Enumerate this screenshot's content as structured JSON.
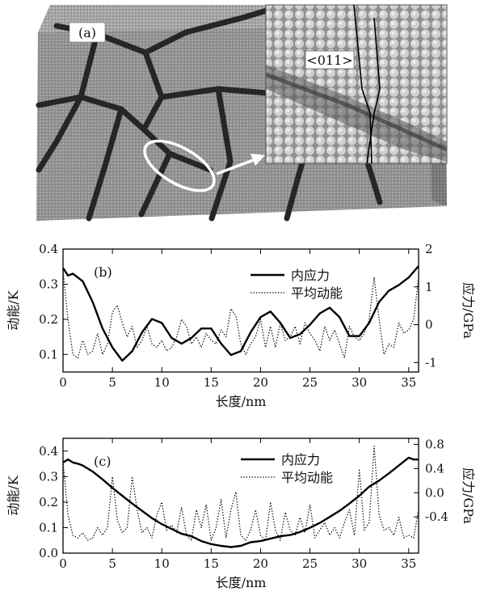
{
  "panel_a": {
    "label": "(a)",
    "inset_label": "<011>"
  },
  "chart_data": [
    {
      "type": "line",
      "panel_label": "(b)",
      "xlabel": "长度/nm",
      "ylabel_left": "动能/K",
      "ylabel_right": "应力/GPa",
      "xlim": [
        0,
        36
      ],
      "ylim_left": [
        0.05,
        0.4
      ],
      "ylim_right": [
        -1.25,
        2
      ],
      "xticks": [
        0,
        5,
        10,
        15,
        20,
        25,
        30,
        35
      ],
      "yticks_left": [
        "0.1",
        "0.2",
        "0.3",
        "0.4"
      ],
      "yticks_right": [
        "-1",
        "0",
        "1",
        "2"
      ],
      "legend_position": "top-right",
      "series": [
        {
          "name": "内应力",
          "axis": "right",
          "style": "solid",
          "x": [
            0,
            0.5,
            1,
            2,
            3,
            4,
            5,
            6,
            7,
            8,
            9,
            10,
            11,
            12,
            13,
            14,
            15,
            16,
            17,
            18,
            19,
            20,
            21,
            22,
            23,
            24,
            25,
            26,
            27,
            28,
            29,
            30,
            31,
            32,
            33,
            34,
            35,
            36
          ],
          "y": [
            1.5,
            1.3,
            1.35,
            1.15,
            0.6,
            -0.1,
            -0.6,
            -0.95,
            -0.7,
            -0.2,
            0.15,
            0.05,
            -0.35,
            -0.5,
            -0.35,
            -0.1,
            -0.1,
            -0.5,
            -0.8,
            -0.7,
            -0.2,
            0.2,
            0.35,
            0.05,
            -0.35,
            -0.25,
            0.0,
            0.3,
            0.45,
            0.2,
            -0.3,
            -0.3,
            0.05,
            0.6,
            0.9,
            1.05,
            1.25,
            1.55
          ]
        },
        {
          "name": "平均动能",
          "axis": "left",
          "style": "dotted",
          "x": [
            0,
            0.5,
            1,
            1.5,
            2,
            2.5,
            3,
            3.5,
            4,
            4.5,
            5,
            5.5,
            6,
            6.5,
            7,
            7.5,
            8,
            8.5,
            9,
            9.5,
            10,
            10.5,
            11,
            11.5,
            12,
            12.5,
            13,
            13.5,
            14,
            14.5,
            15,
            15.5,
            16,
            16.5,
            17,
            17.5,
            18,
            18.5,
            19,
            19.5,
            20,
            20.5,
            21,
            21.5,
            22,
            22.5,
            23,
            23.5,
            24,
            24.5,
            25,
            25.5,
            26,
            26.5,
            27,
            27.5,
            28,
            28.5,
            29,
            29.5,
            30,
            30.5,
            31,
            31.5,
            32,
            32.5,
            33,
            33.5,
            34,
            34.5,
            35,
            35.5,
            36
          ],
          "y": [
            0.34,
            0.2,
            0.1,
            0.09,
            0.14,
            0.1,
            0.11,
            0.16,
            0.1,
            0.13,
            0.22,
            0.24,
            0.19,
            0.15,
            0.18,
            0.12,
            0.14,
            0.18,
            0.13,
            0.12,
            0.14,
            0.11,
            0.12,
            0.15,
            0.2,
            0.18,
            0.13,
            0.15,
            0.12,
            0.16,
            0.14,
            0.13,
            0.17,
            0.15,
            0.23,
            0.21,
            0.13,
            0.1,
            0.13,
            0.15,
            0.2,
            0.12,
            0.18,
            0.12,
            0.19,
            0.14,
            0.15,
            0.18,
            0.13,
            0.19,
            0.16,
            0.14,
            0.11,
            0.18,
            0.14,
            0.17,
            0.13,
            0.09,
            0.18,
            0.15,
            0.14,
            0.16,
            0.2,
            0.32,
            0.2,
            0.1,
            0.13,
            0.12,
            0.19,
            0.16,
            0.17,
            0.2,
            0.32
          ]
        }
      ]
    },
    {
      "type": "line",
      "panel_label": "(c)",
      "xlabel": "长度/nm",
      "ylabel_left": "动能/K",
      "ylabel_right": "应力/GPa",
      "xlim": [
        0,
        36
      ],
      "ylim_left": [
        0,
        0.45
      ],
      "ylim_right": [
        -1.0,
        0.9
      ],
      "xticks": [
        0,
        5,
        10,
        15,
        20,
        25,
        30,
        35
      ],
      "yticks_left": [
        "0.0",
        "0.1",
        "0.2",
        "0.3",
        "0.4"
      ],
      "yticks_right": [
        "-0.4",
        "0.0",
        "0.4",
        "0.8"
      ],
      "legend_position": "top-right",
      "series": [
        {
          "name": "内应力",
          "axis": "right",
          "style": "solid",
          "x": [
            0,
            0.5,
            1,
            1.5,
            2,
            3,
            4,
            5,
            6,
            7,
            8,
            9,
            10,
            11,
            12,
            13,
            14,
            15,
            16,
            17,
            18,
            19,
            20,
            21,
            22,
            23,
            24,
            25,
            26,
            27,
            28,
            29,
            30,
            31,
            32,
            33,
            34,
            35,
            35.5,
            36
          ],
          "y": [
            0.5,
            0.55,
            0.5,
            0.48,
            0.45,
            0.35,
            0.22,
            0.08,
            -0.05,
            -0.18,
            -0.3,
            -0.42,
            -0.52,
            -0.6,
            -0.68,
            -0.72,
            -0.8,
            -0.85,
            -0.88,
            -0.9,
            -0.88,
            -0.82,
            -0.8,
            -0.76,
            -0.72,
            -0.7,
            -0.65,
            -0.58,
            -0.5,
            -0.4,
            -0.3,
            -0.18,
            -0.05,
            0.1,
            0.2,
            0.32,
            0.45,
            0.58,
            0.55,
            0.55
          ]
        },
        {
          "name": "平均动能",
          "axis": "left",
          "style": "dotted",
          "x": [
            0,
            0.5,
            1,
            1.5,
            2,
            2.5,
            3,
            3.5,
            4,
            4.5,
            5,
            5.5,
            6,
            6.5,
            7,
            7.5,
            8,
            8.5,
            9,
            9.5,
            10,
            10.5,
            11,
            11.5,
            12,
            12.5,
            13,
            13.5,
            14,
            14.5,
            15,
            15.5,
            16,
            16.5,
            17,
            17.5,
            18,
            18.5,
            19,
            19.5,
            20,
            20.5,
            21,
            21.5,
            22,
            22.5,
            23,
            23.5,
            24,
            24.5,
            25,
            25.5,
            26,
            26.5,
            27,
            27.5,
            28,
            28.5,
            29,
            29.5,
            30,
            30.5,
            31,
            31.5,
            32,
            32.5,
            33,
            33.5,
            34,
            34.5,
            35,
            35.5,
            36
          ],
          "y": [
            0.36,
            0.15,
            0.07,
            0.06,
            0.08,
            0.05,
            0.06,
            0.1,
            0.07,
            0.1,
            0.3,
            0.13,
            0.08,
            0.1,
            0.3,
            0.17,
            0.08,
            0.1,
            0.06,
            0.15,
            0.2,
            0.09,
            0.11,
            0.08,
            0.18,
            0.07,
            0.05,
            0.17,
            0.1,
            0.19,
            0.05,
            0.1,
            0.21,
            0.06,
            0.17,
            0.24,
            0.07,
            0.05,
            0.09,
            0.17,
            0.07,
            0.05,
            0.2,
            0.09,
            0.05,
            0.16,
            0.09,
            0.07,
            0.14,
            0.08,
            0.19,
            0.06,
            0.09,
            0.12,
            0.07,
            0.1,
            0.06,
            0.12,
            0.17,
            0.07,
            0.33,
            0.09,
            0.12,
            0.42,
            0.15,
            0.09,
            0.1,
            0.07,
            0.14,
            0.06,
            0.07,
            0.06,
            0.17
          ]
        }
      ]
    }
  ]
}
